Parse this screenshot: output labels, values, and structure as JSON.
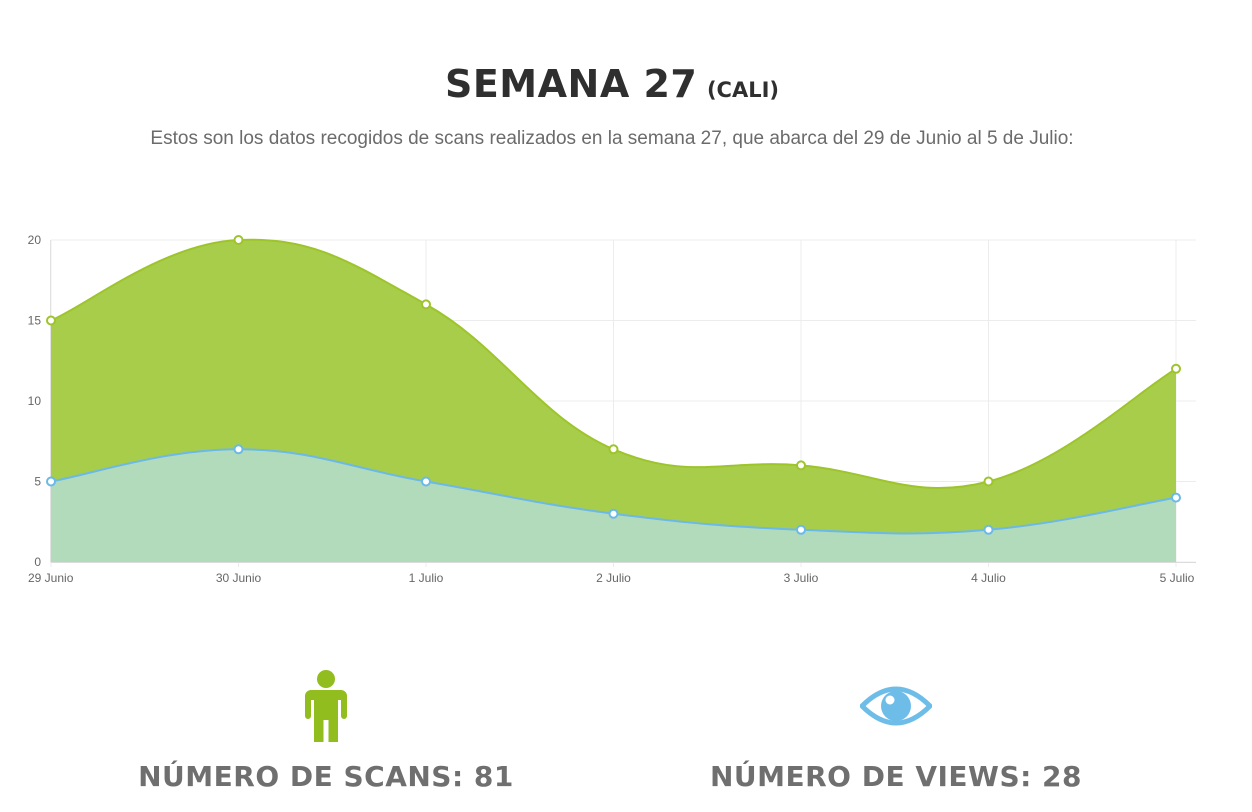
{
  "header": {
    "title": "SEMANA 27",
    "title_suffix": "(CALI)",
    "description": "Estos son los datos recogidos de scans realizados en la semana 27, que abarca del 29 de Junio al 5 de Julio:"
  },
  "chart_data": {
    "type": "area",
    "categories": [
      "29 Junio",
      "30 Junio",
      "1 Julio",
      "2 Julio",
      "3 Julio",
      "4 Julio",
      "5 Julio"
    ],
    "series": [
      {
        "values": [
          15,
          20,
          16,
          7,
          6,
          5,
          12
        ],
        "color": "#9dc52b",
        "fill": "#a7cd4b"
      },
      {
        "values": [
          5,
          7,
          5,
          3,
          2,
          2,
          4
        ],
        "color": "#6ab9e8",
        "fill": "#b2dbbb"
      }
    ],
    "yticks": [
      0,
      5,
      10,
      15,
      20
    ],
    "ylim": [
      0,
      20
    ],
    "grid": true,
    "legend": "none"
  },
  "stats": {
    "scans": {
      "label": "NÚMERO DE SCANS: 81",
      "icon": "person-icon",
      "color": "#92bd1f"
    },
    "views": {
      "label": "NÚMERO DE VIEWS: 28",
      "icon": "eye-icon",
      "color": "#6ebde9"
    }
  }
}
